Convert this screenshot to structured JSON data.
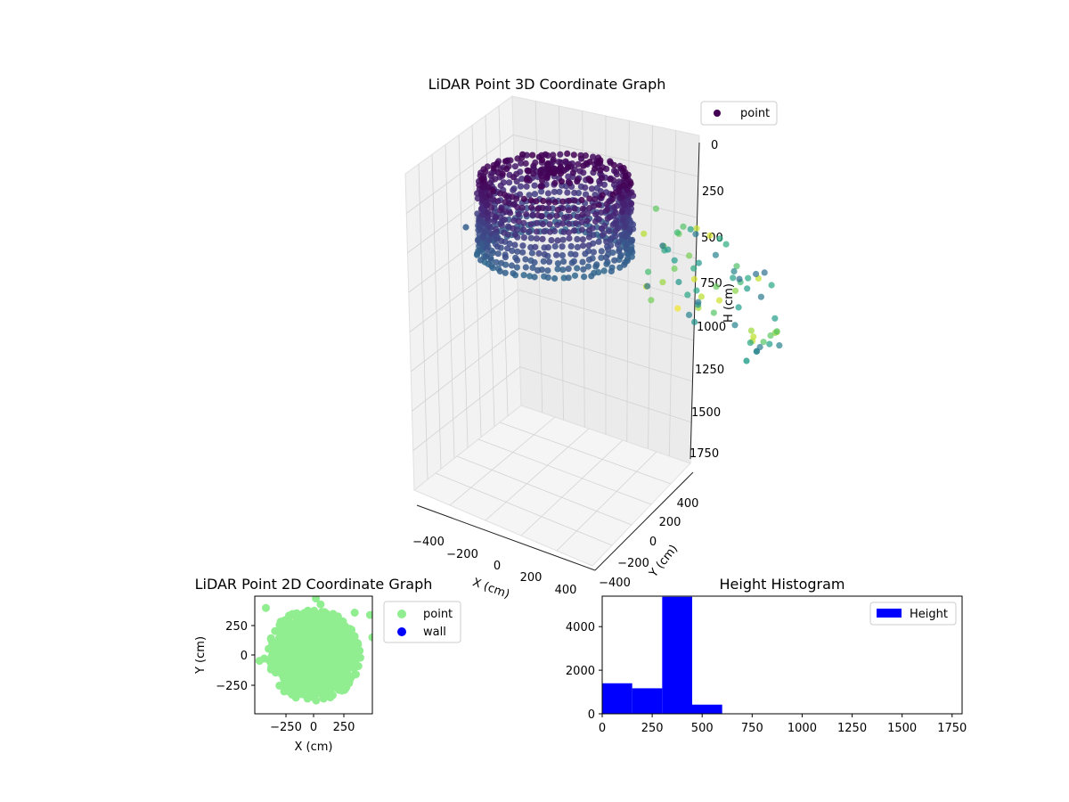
{
  "chart_data": [
    {
      "type": "scatter3d",
      "title": "LiDAR Point 3D Coordinate Graph",
      "xlabel": "X (cm)",
      "ylabel": "Y (cm)",
      "zlabel": "H (cm)",
      "xlim": [
        -500,
        500
      ],
      "ylim": [
        -500,
        500
      ],
      "zlim": [
        1800,
        0
      ],
      "xticks": [
        "−400",
        "−200",
        "0",
        "200",
        "400"
      ],
      "yticks": [
        "−400",
        "−200",
        "0",
        "200",
        "400"
      ],
      "zticks": [
        "0",
        "250",
        "500",
        "750",
        "1000",
        "1250",
        "1500",
        "1750"
      ],
      "legend": {
        "position": "top-right",
        "entries": [
          {
            "label": "point",
            "color": "#440154"
          }
        ]
      },
      "colormap": "viridis",
      "grid": true,
      "point_groups": [
        {
          "desc": "cylindrical cluster",
          "x_range": [
            -400,
            400
          ],
          "y_range": [
            -400,
            400
          ],
          "h_range": [
            0,
            600
          ]
        },
        {
          "desc": "sparse outliers",
          "x_range": [
            250,
            500
          ],
          "y_range": [
            -200,
            200
          ],
          "h_range": [
            600,
            1500
          ]
        }
      ]
    },
    {
      "type": "scatter",
      "title": "LiDAR Point 2D Coordinate Graph",
      "xlabel": "X (cm)",
      "ylabel": "Y (cm)",
      "xticks": [
        "−250",
        "0",
        "250"
      ],
      "yticks": [
        "250",
        "0",
        "−250"
      ],
      "xlim": [
        -500,
        500
      ],
      "ylim": [
        -500,
        500
      ],
      "legend": {
        "position": "outside-right",
        "entries": [
          {
            "label": "point",
            "color": "#90ee90"
          },
          {
            "label": "wall",
            "color": "#0000ff"
          }
        ]
      },
      "series": [
        {
          "name": "point",
          "color": "#90ee90",
          "shape": "disk",
          "center": [
            0,
            0
          ],
          "radius": 380
        },
        {
          "name": "wall",
          "color": "#0000ff",
          "points": []
        }
      ]
    },
    {
      "type": "histogram",
      "title": "Height Histogram",
      "color": "#0000ff",
      "xlim": [
        0,
        1800
      ],
      "ylim": [
        0,
        5400
      ],
      "xticks": [
        "0",
        "250",
        "500",
        "750",
        "1000",
        "1250",
        "1500",
        "1750"
      ],
      "yticks": [
        "0",
        "2000",
        "4000"
      ],
      "legend": {
        "position": "top-right",
        "entries": [
          {
            "label": "Height",
            "color": "#0000ff"
          }
        ]
      },
      "bins": [
        0,
        150,
        300,
        450,
        600,
        750,
        900,
        1050,
        1200,
        1350,
        1500,
        1650,
        1800
      ],
      "counts": [
        1400,
        1170,
        5370,
        420,
        0,
        0,
        0,
        0,
        0,
        20,
        0,
        0
      ]
    }
  ]
}
